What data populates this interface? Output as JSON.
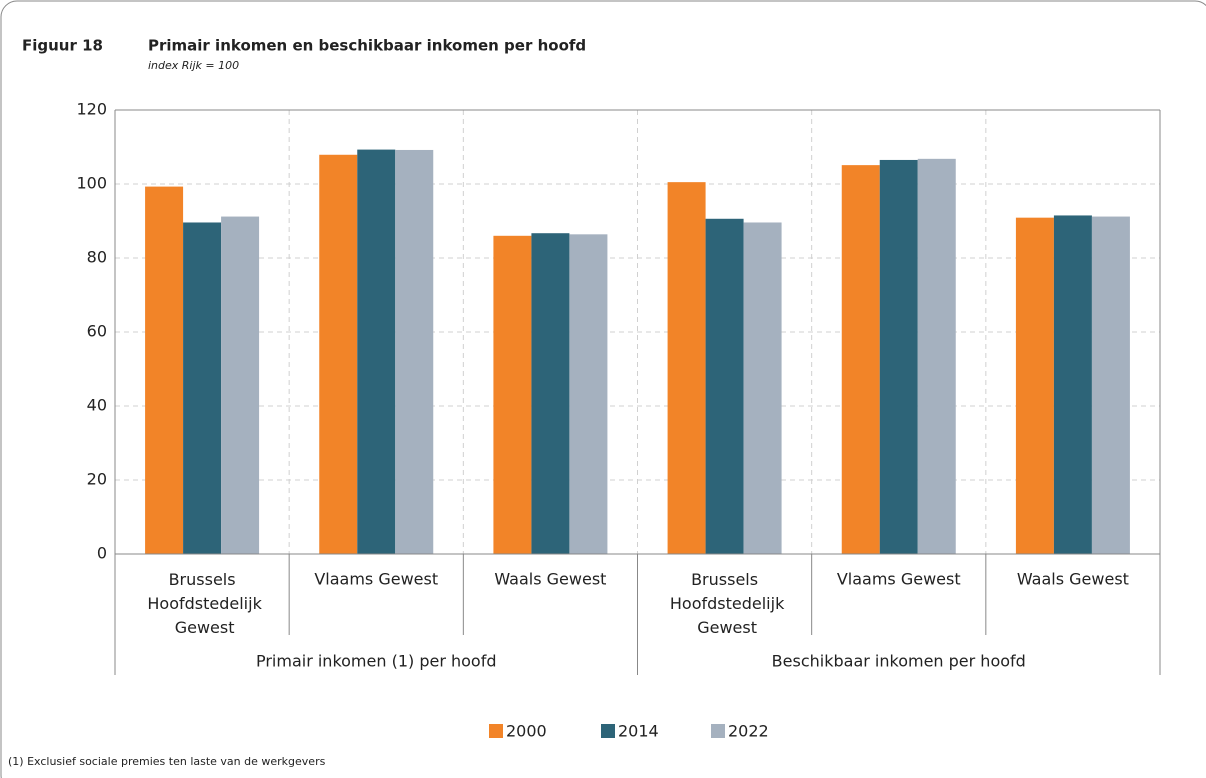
{
  "chart_data": {
    "type": "bar",
    "figure_label": "Figuur 18",
    "title": "Primair inkomen en beschikbaar inkomen per hoofd",
    "subtitle": "index Rijk = 100",
    "categories": [
      "Brussels Hoofdstedelijk Gewest",
      "Vlaams Gewest",
      "Waals Gewest",
      "Brussels Hoofdstedelijk Gewest",
      "Vlaams Gewest",
      "Waals Gewest"
    ],
    "groups": [
      "Primair inkomen (1) per hoofd",
      "Beschikbaar inkomen per hoofd"
    ],
    "series": [
      {
        "name": "2000",
        "color": "#f28428",
        "values": [
          99.3,
          107.9,
          86.0,
          100.5,
          105.1,
          90.9
        ]
      },
      {
        "name": "2014",
        "color": "#2d6478",
        "values": [
          89.6,
          109.3,
          86.7,
          90.6,
          106.5,
          91.5
        ]
      },
      {
        "name": "2022",
        "color": "#a5b1bf",
        "values": [
          91.2,
          109.2,
          86.4,
          89.6,
          106.8,
          91.2
        ]
      }
    ],
    "ylim": [
      0,
      120
    ],
    "yticks": [
      0,
      20,
      40,
      60,
      80,
      100,
      120
    ],
    "grid": true,
    "legend": "bottom",
    "footnote": "(1) Exclusief sociale premies ten laste van de werkgevers"
  }
}
